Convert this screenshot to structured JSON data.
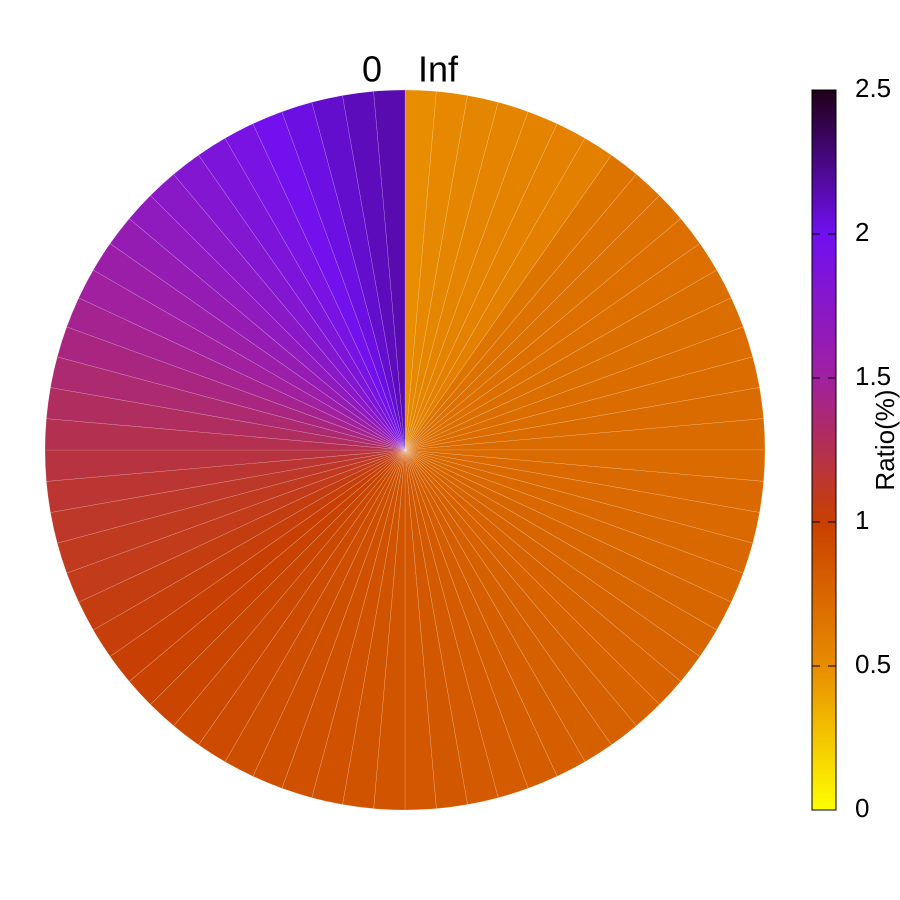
{
  "chart_data": {
    "type": "polar-heatmap",
    "start_label": "Inf",
    "end_label": "0",
    "values": [
      0.5,
      0.52,
      0.54,
      0.55,
      0.56,
      0.57,
      0.58,
      0.66,
      0.67,
      0.68,
      0.69,
      0.69,
      0.7,
      0.7,
      0.71,
      0.71,
      0.72,
      0.72,
      0.72,
      0.73,
      0.73,
      0.74,
      0.74,
      0.75,
      0.75,
      0.76,
      0.77,
      0.77,
      0.78,
      0.79,
      0.8,
      0.81,
      0.82,
      0.83,
      0.84,
      0.85,
      0.86,
      0.87,
      0.88,
      0.89,
      0.9,
      0.91,
      0.93,
      0.95,
      0.97,
      0.99,
      1.01,
      1.03,
      1.05,
      1.08,
      1.1,
      1.13,
      1.16,
      1.2,
      1.25,
      1.3,
      1.35,
      1.4,
      1.45,
      1.5,
      1.55,
      1.62,
      1.68,
      1.74,
      1.8,
      1.86,
      1.92,
      1.98,
      2.03,
      2.08,
      2.12,
      2.15
    ],
    "colorbar_label": "Ratio(%)",
    "clim": [
      0,
      2.5
    ],
    "cticks": [
      0,
      0.5,
      1,
      1.5,
      2,
      2.5
    ],
    "colormap": [
      "#ffff00",
      "#e88c00",
      "#c84000",
      "#a020a0",
      "#7010f0",
      "#200018"
    ]
  }
}
